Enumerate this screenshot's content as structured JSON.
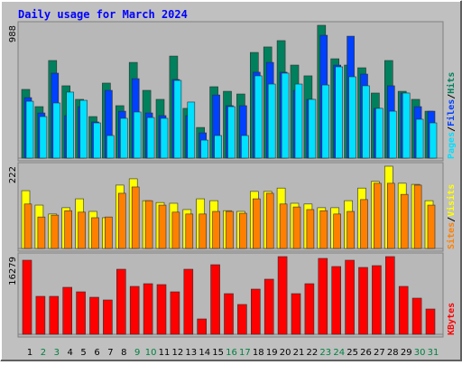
{
  "chart_data": [
    {
      "type": "bar",
      "title": "Daily usage for March 2024",
      "ylim": [
        0,
        988
      ],
      "legend_separator": "/",
      "series": [
        {
          "name": "Hits",
          "color": "#00805c",
          "values": [
            511,
            383,
            726,
            538,
            437,
            309,
            558,
            390,
            712,
            504,
            437,
            759,
            370,
            228,
            531,
            497,
            477,
            786,
            827,
            874,
            692,
            612,
            988,
            739,
            692,
            672,
            484,
            726,
            497,
            437,
            349
          ]
        },
        {
          "name": "Files",
          "color": "#0040ff",
          "values": [
            450,
            336,
            632,
            316,
            383,
            269,
            504,
            349,
            591,
            336,
            316,
            585,
            316,
            188,
            470,
            390,
            390,
            639,
            712,
            639,
            504,
            437,
            914,
            692,
            907,
            625,
            370,
            538,
            484,
            383,
            349
          ]
        },
        {
          "name": "Pages",
          "color": "#00e0ff",
          "values": [
            423,
            309,
            410,
            491,
            430,
            262,
            168,
            296,
            343,
            302,
            296,
            578,
            417,
            134,
            168,
            383,
            168,
            612,
            551,
            632,
            551,
            437,
            544,
            679,
            605,
            538,
            370,
            349,
            484,
            289,
            262
          ]
        }
      ]
    },
    {
      "type": "bar",
      "ylim": [
        0,
        222
      ],
      "legend_separator": "/",
      "series": [
        {
          "name": "Visits",
          "color": "#ffff00",
          "values": [
            156,
            117,
            93,
            110,
            134,
            100,
            83,
            171,
            188,
            129,
            124,
            122,
            105,
            134,
            129,
            102,
            100,
            154,
            154,
            163,
            122,
            120,
            110,
            110,
            129,
            163,
            181,
            222,
            176,
            173,
            129
          ]
        },
        {
          "name": "Sites",
          "color": "#ff8000",
          "values": [
            120,
            85,
            90,
            102,
            98,
            83,
            85,
            149,
            166,
            129,
            117,
            98,
            93,
            93,
            100,
            100,
            95,
            134,
            149,
            120,
            112,
            105,
            102,
            93,
            100,
            132,
            176,
            176,
            146,
            171,
            117
          ]
        }
      ]
    },
    {
      "type": "bar",
      "ylim": [
        0,
        16279
      ],
      "categories": [
        "1",
        "2",
        "3",
        "4",
        "5",
        "6",
        "7",
        "8",
        "9",
        "10",
        "11",
        "12",
        "13",
        "14",
        "15",
        "16",
        "17",
        "18",
        "19",
        "20",
        "21",
        "22",
        "23",
        "24",
        "25",
        "26",
        "27",
        "28",
        "29",
        "30",
        "31"
      ],
      "label_colors": [
        "#000000",
        "#008040",
        "#008040",
        "#000000",
        "#000000",
        "#000000",
        "#000000",
        "#000000",
        "#008040",
        "#008040",
        "#000000",
        "#000000",
        "#000000",
        "#000000",
        "#000000",
        "#008040",
        "#008040",
        "#000000",
        "#000000",
        "#000000",
        "#000000",
        "#000000",
        "#008040",
        "#008040",
        "#000000",
        "#000000",
        "#000000",
        "#000000",
        "#000000",
        "#008040",
        "#008040"
      ],
      "series": [
        {
          "name": "KBytes",
          "color": "#ff0000",
          "values": [
            15523,
            7950,
            7950,
            9844,
            8897,
            7761,
            7193,
            13630,
            10033,
            10601,
            10412,
            8897,
            13630,
            3218,
            14577,
            8518,
            6247,
            9465,
            11547,
            16279,
            8518,
            10601,
            15901,
            14198,
            15523,
            14009,
            14387,
            16279,
            10033,
            7572,
            5300
          ]
        }
      ]
    }
  ]
}
